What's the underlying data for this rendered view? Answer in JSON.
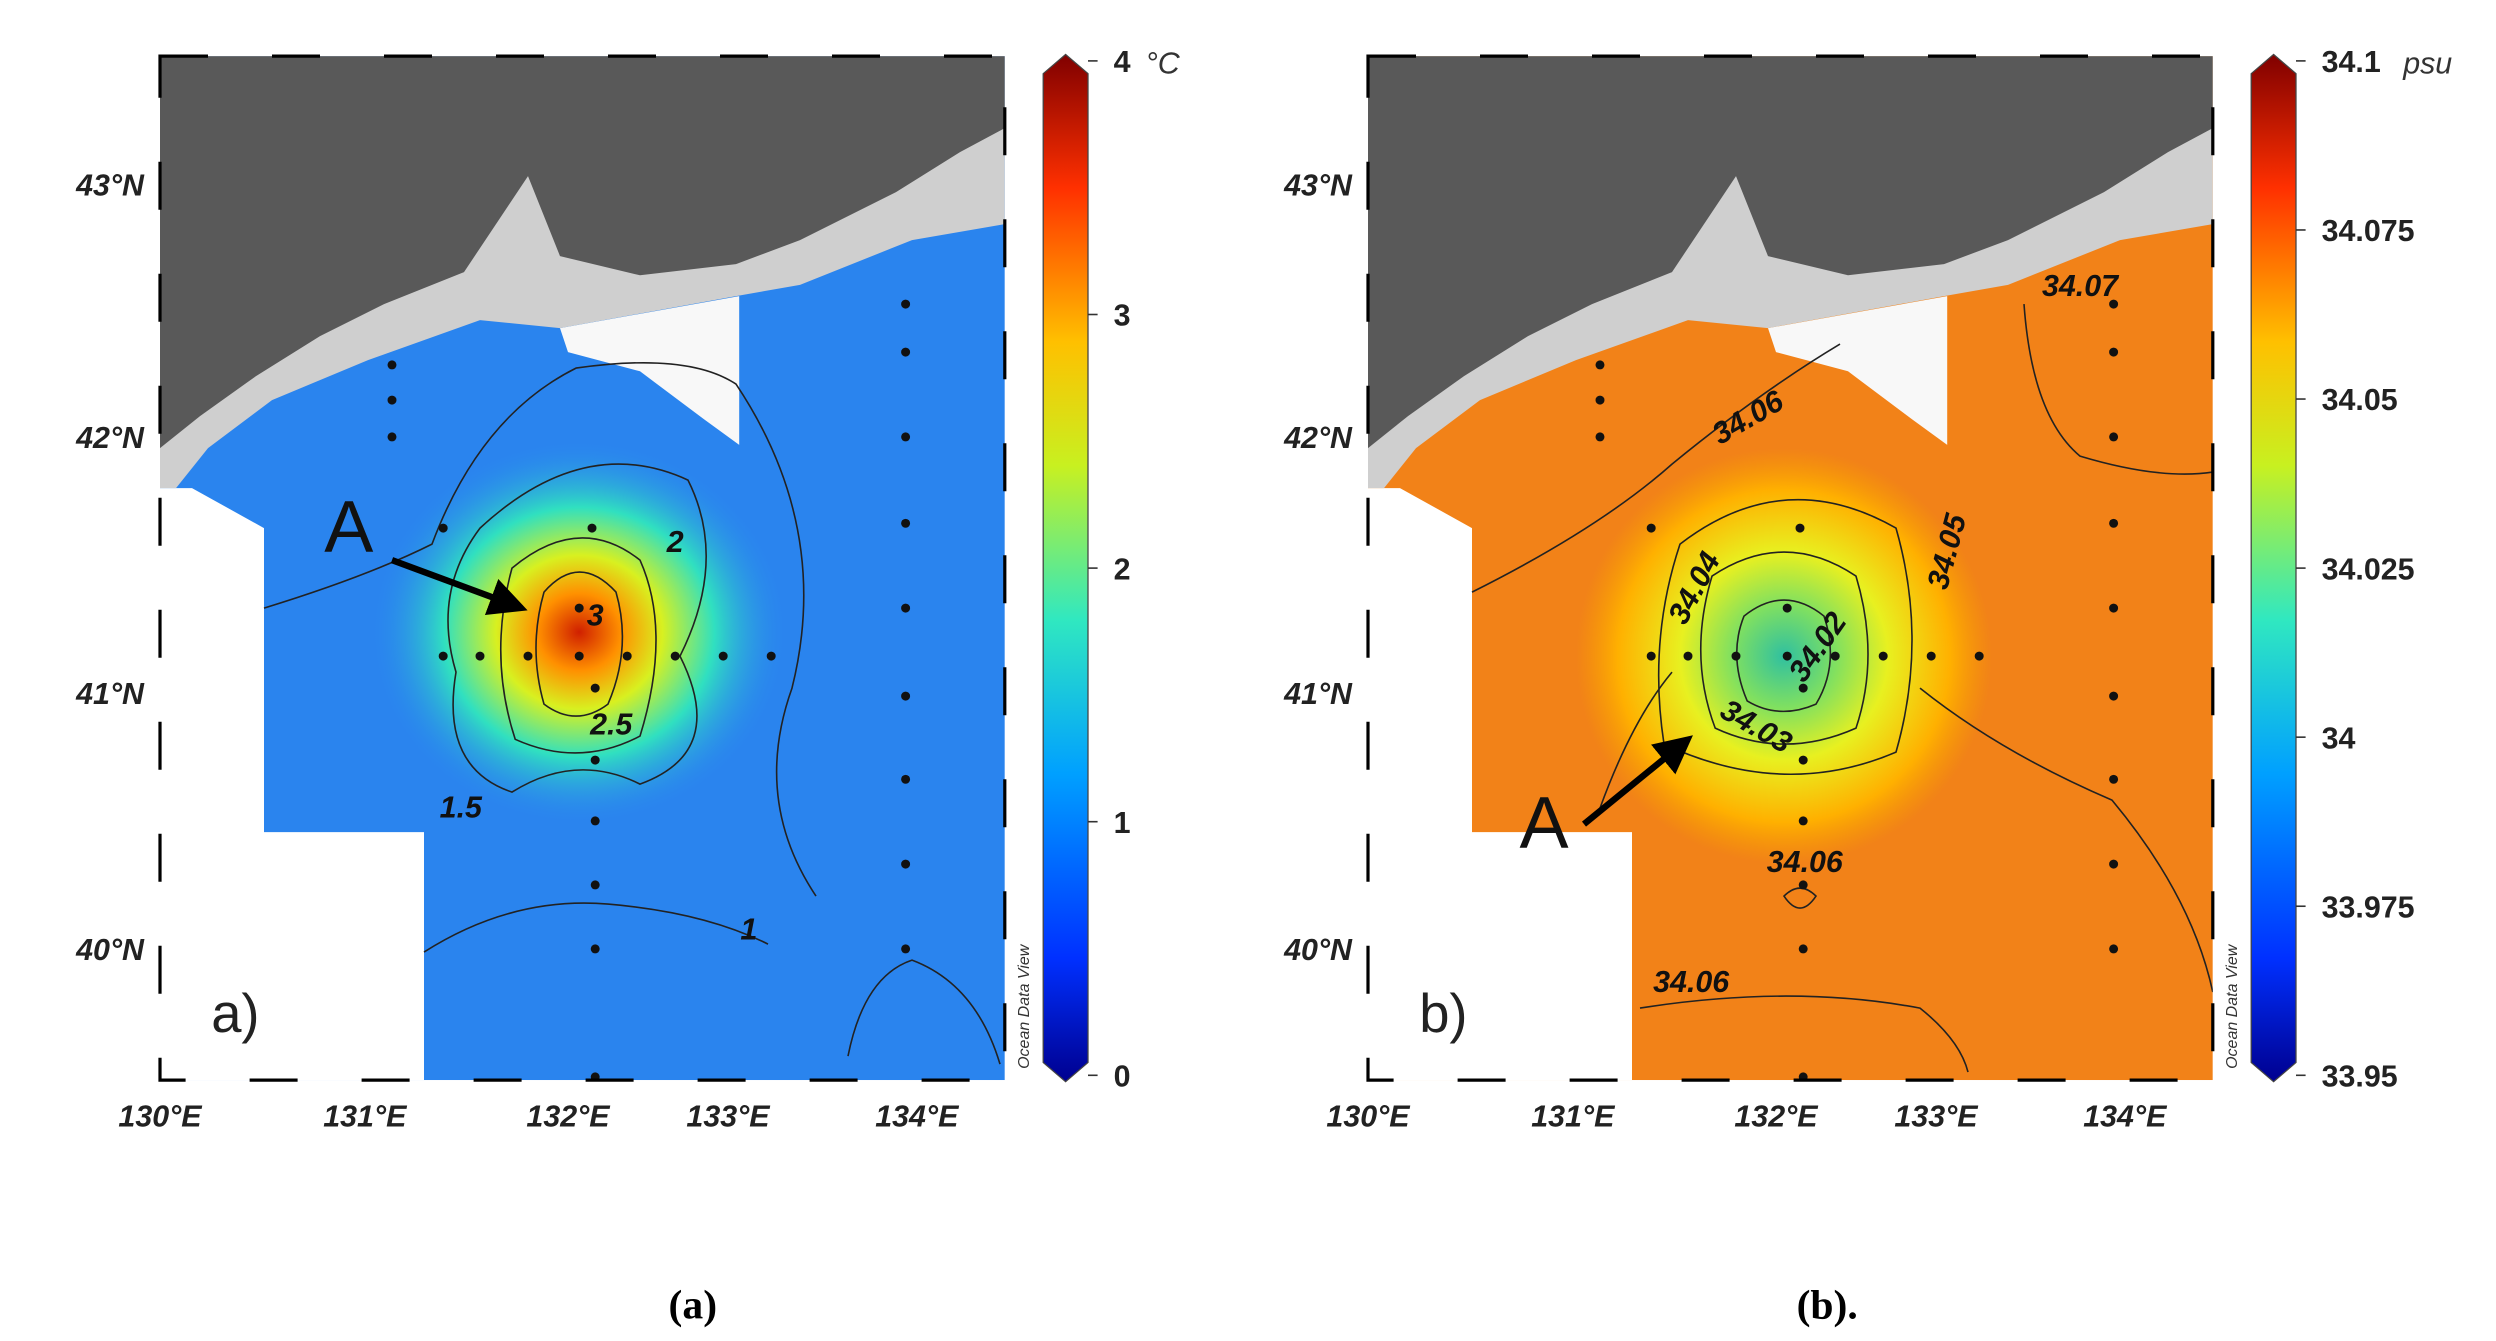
{
  "panels": [
    {
      "label": "a)",
      "caption": "(a)",
      "annotation": "A",
      "watermark": "Ocean Data View",
      "colorbar": {
        "unit": "°C",
        "ticks": [
          0,
          1,
          2,
          3,
          4
        ]
      },
      "x_labels": [
        "130°E",
        "131°E",
        "132°E",
        "133°E",
        "134°E"
      ],
      "y_labels": [
        "43°N",
        "42°N",
        "41°N",
        "40°N"
      ],
      "contour_labels": [
        "3",
        "2",
        "2.5",
        "1.5",
        "1"
      ]
    },
    {
      "label": "b)",
      "caption": "(b).",
      "annotation": "A",
      "watermark": "Ocean Data View",
      "colorbar": {
        "unit": "psu",
        "ticks": [
          33.95,
          33.975,
          34,
          34.025,
          34.05,
          34.075,
          34.1
        ]
      },
      "x_labels": [
        "130°E",
        "131°E",
        "132°E",
        "133°E",
        "134°E"
      ],
      "y_labels": [
        "43°N",
        "42°N",
        "41°N",
        "40°N"
      ],
      "contour_labels": [
        "34.06",
        "34.04",
        "34.02",
        "34.05",
        "34.03",
        "34.06",
        "34.06",
        "34.07"
      ]
    }
  ]
}
